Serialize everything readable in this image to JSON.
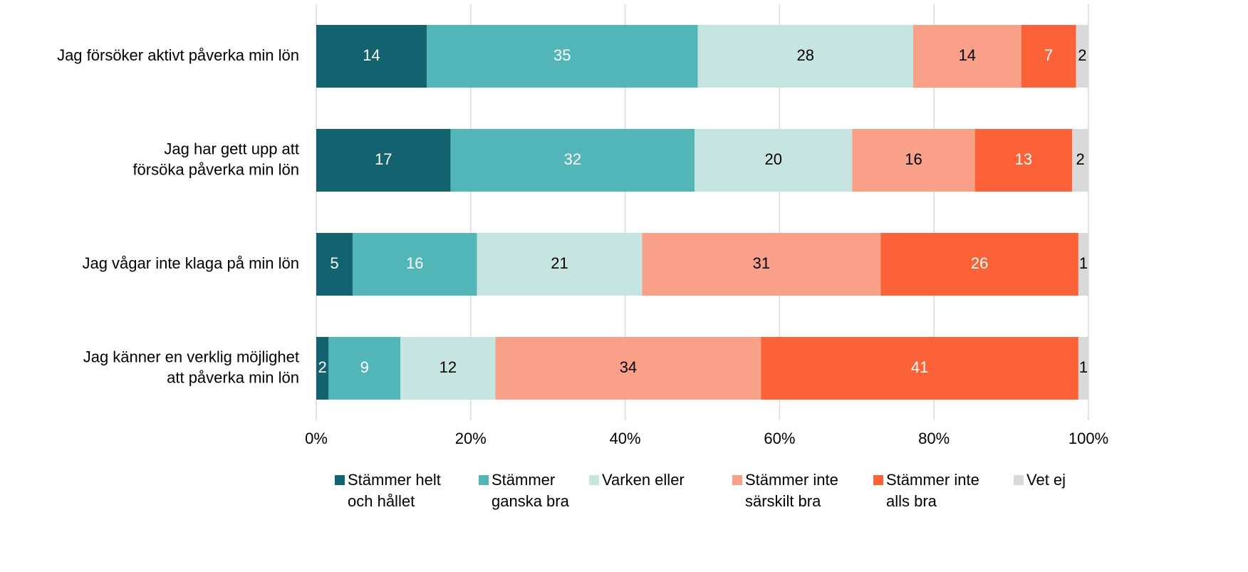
{
  "chart_data": {
    "type": "stacked_barh",
    "categories": [
      "Jag försöker aktivt påverka min lön",
      "Jag har gett upp att\nförsöka påverka min lön",
      "Jag vågar inte klaga på min lön",
      "Jag känner en verklig möjlighet\natt påverka min lön"
    ],
    "series": [
      {
        "name": "Stämmer helt\noch hållet",
        "color": "#12626f",
        "label_color": "#ffffff",
        "values": [
          14.3,
          17.4,
          4.7,
          1.6
        ],
        "value_labels": [
          "14",
          "17",
          "5",
          "2"
        ]
      },
      {
        "name": "Stämmer\nganska bra",
        "color": "#52b6b9",
        "label_color": "#ffffff",
        "values": [
          35.1,
          31.6,
          16.1,
          9.3
        ],
        "value_labels": [
          "35",
          "32",
          "16",
          "9"
        ]
      },
      {
        "name": "Varken eller",
        "color": "#c7e5e0",
        "label_color": "#000000",
        "values": [
          27.9,
          20.4,
          21.4,
          12.3
        ],
        "value_labels": [
          "28",
          "20",
          "21",
          "12"
        ]
      },
      {
        "name": "Stämmer inte\nsärskilt bra",
        "color": "#f9a088",
        "label_color": "#000000",
        "values": [
          14.0,
          15.9,
          30.9,
          34.4
        ],
        "value_labels": [
          "14",
          "16",
          "31",
          "34"
        ]
      },
      {
        "name": "Stämmer inte\nalls bra",
        "color": "#fb6238",
        "label_color": "#ffffff",
        "values": [
          7.1,
          12.6,
          25.6,
          41.1
        ],
        "value_labels": [
          "7",
          "13",
          "26",
          "41"
        ]
      },
      {
        "name": "Vet ej",
        "color": "#d9d9d9",
        "label_color": "#000000",
        "values": [
          1.6,
          2.1,
          1.3,
          1.3
        ],
        "value_labels": [
          "2",
          "2",
          "1",
          "1"
        ]
      }
    ],
    "xlim": [
      0,
      100
    ],
    "xticks": [
      {
        "value": 0,
        "label": "0%"
      },
      {
        "value": 20,
        "label": "20%"
      },
      {
        "value": 40,
        "label": "40%"
      },
      {
        "value": 60,
        "label": "60%"
      },
      {
        "value": 80,
        "label": "80%"
      },
      {
        "value": 100,
        "label": "100%"
      }
    ],
    "grid": true,
    "legend": "bottom"
  }
}
